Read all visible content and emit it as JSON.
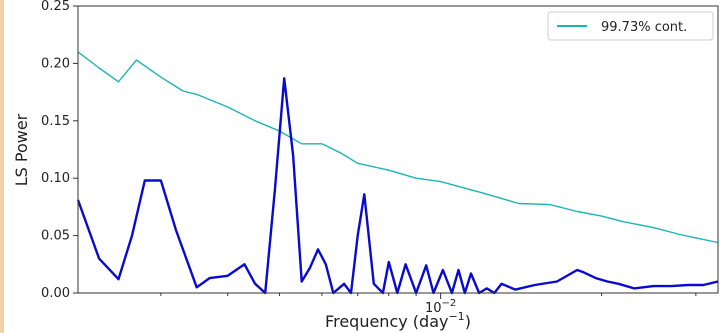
{
  "chart_data": {
    "type": "line",
    "title": "",
    "xlabel": "Frequency (day",
    "xlabel_exp": "−1",
    "xlabel_close": ")",
    "ylabel": "LS Power",
    "x_scale": "log",
    "xlim": [
      0.0021,
      0.033
    ],
    "ylim": [
      0,
      0.25
    ],
    "grid": false,
    "legend": "top-right",
    "y_ticks": [
      {
        "value": 0.0,
        "label": "0.00"
      },
      {
        "value": 0.05,
        "label": "0.05"
      },
      {
        "value": 0.1,
        "label": "0.10"
      },
      {
        "value": 0.15,
        "label": "0.15"
      },
      {
        "value": 0.2,
        "label": "0.20"
      },
      {
        "value": 0.25,
        "label": "0.25"
      }
    ],
    "x_major_ticks": [
      {
        "value": 0.01,
        "base": "10",
        "exp": "−2"
      }
    ],
    "series": [
      {
        "name": "99.73% cont.",
        "color": "#1cb5b5",
        "x": [
          0.0021,
          0.0023,
          0.0025,
          0.0027,
          0.003,
          0.0033,
          0.0035,
          0.004,
          0.0045,
          0.005,
          0.0055,
          0.006,
          0.0065,
          0.007,
          0.008,
          0.009,
          0.01,
          0.012,
          0.014,
          0.016,
          0.018,
          0.02,
          0.022,
          0.025,
          0.028,
          0.03,
          0.033
        ],
        "values": [
          0.21,
          0.196,
          0.184,
          0.203,
          0.188,
          0.176,
          0.173,
          0.162,
          0.15,
          0.141,
          0.13,
          0.13,
          0.122,
          0.113,
          0.107,
          0.1,
          0.097,
          0.087,
          0.078,
          0.077,
          0.071,
          0.067,
          0.062,
          0.057,
          0.051,
          0.048,
          0.044
        ]
      },
      {
        "name": "",
        "color": "#0a0acf",
        "x": [
          0.0021,
          0.0023,
          0.0025,
          0.00265,
          0.0028,
          0.003,
          0.0032,
          0.0035,
          0.0037,
          0.004,
          0.0043,
          0.0045,
          0.0047,
          0.0049,
          0.0051,
          0.0053,
          0.0055,
          0.0057,
          0.0059,
          0.0061,
          0.0063,
          0.0066,
          0.0068,
          0.007,
          0.0072,
          0.0075,
          0.0078,
          0.008,
          0.0083,
          0.0086,
          0.009,
          0.0094,
          0.0097,
          0.0101,
          0.0105,
          0.0108,
          0.0111,
          0.0114,
          0.0118,
          0.0122,
          0.0126,
          0.013,
          0.0138,
          0.015,
          0.0165,
          0.018,
          0.0185,
          0.0195,
          0.0205,
          0.0215,
          0.023,
          0.025,
          0.027,
          0.029,
          0.031,
          0.033
        ],
        "values": [
          0.081,
          0.03,
          0.012,
          0.05,
          0.098,
          0.098,
          0.055,
          0.005,
          0.013,
          0.015,
          0.025,
          0.008,
          0.0,
          0.09,
          0.187,
          0.12,
          0.01,
          0.022,
          0.038,
          0.025,
          0.0,
          0.008,
          0.0,
          0.05,
          0.086,
          0.008,
          0.0,
          0.027,
          0.0,
          0.025,
          0.0,
          0.024,
          0.0,
          0.02,
          0.0,
          0.02,
          0.0,
          0.017,
          0.0,
          0.004,
          0.0,
          0.008,
          0.003,
          0.007,
          0.01,
          0.02,
          0.018,
          0.013,
          0.01,
          0.008,
          0.004,
          0.006,
          0.006,
          0.007,
          0.007,
          0.01
        ]
      }
    ]
  }
}
